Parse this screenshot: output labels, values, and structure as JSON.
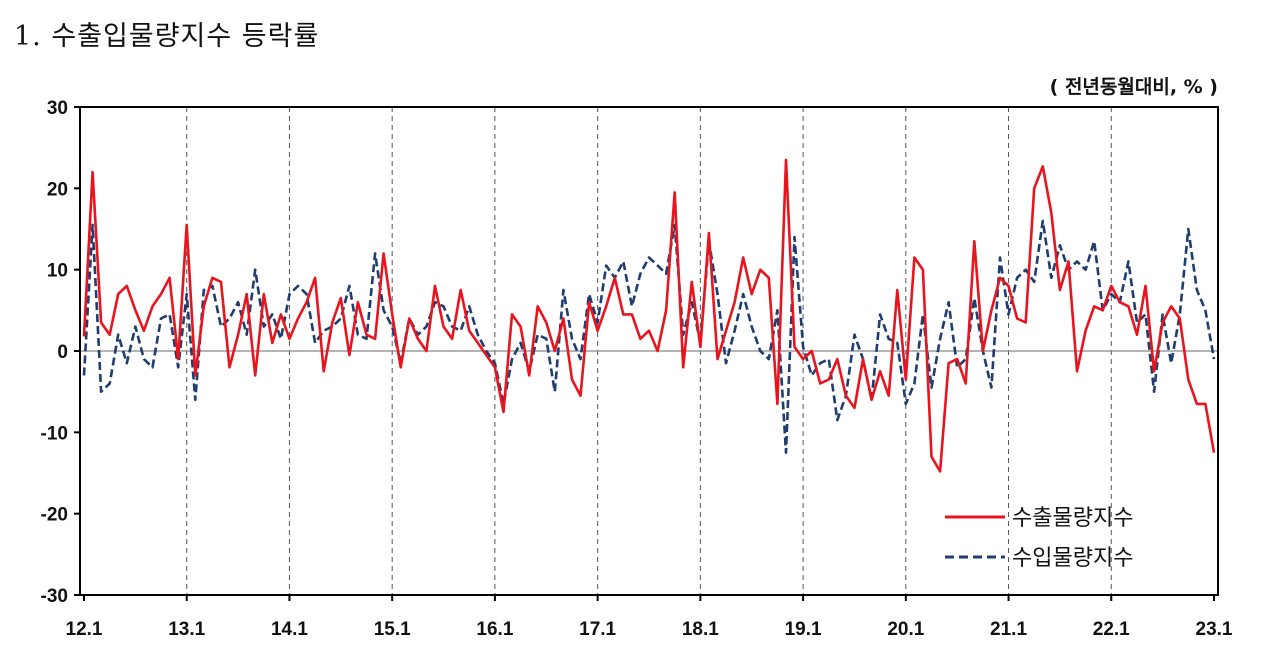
{
  "title": "1. 수출입물량지수 등락률",
  "unit_label": "( 전년동월대비, % )",
  "chart_data": {
    "type": "line",
    "ylim": [
      -30,
      30
    ],
    "yticks": [
      30,
      20,
      10,
      0,
      -10,
      -20,
      -30
    ],
    "xticks": [
      "12.1",
      "13.1",
      "14.1",
      "15.1",
      "16.1",
      "17.1",
      "18.1",
      "19.1",
      "20.1",
      "21.1",
      "22.1",
      "23.1"
    ],
    "x_range": [
      "2012-01",
      "2023-01"
    ],
    "grid": "vertical dashed at each January",
    "legend_position": "bottom-right",
    "series": [
      {
        "name": "수출물량지수",
        "color": "#e8141e",
        "style": "solid",
        "values": [
          1.8,
          22.0,
          3.5,
          2.0,
          7.0,
          8.0,
          5.0,
          2.5,
          5.5,
          7.0,
          9.0,
          -1.0,
          15.5,
          -3.0,
          5.5,
          9.0,
          8.5,
          -2.0,
          2.0,
          7.0,
          -3.0,
          7.0,
          1.0,
          4.5,
          1.5,
          4.0,
          6.0,
          9.0,
          -2.5,
          3.5,
          6.5,
          -0.5,
          6.0,
          2.0,
          1.5,
          12.0,
          4.5,
          -2.0,
          4.0,
          1.5,
          0.0,
          8.0,
          3.0,
          1.5,
          7.5,
          2.5,
          1.0,
          -0.5,
          -2.0,
          -7.5,
          4.5,
          3.0,
          -3.0,
          5.5,
          3.5,
          0.0,
          4.0,
          -3.5,
          -5.5,
          6.0,
          2.5,
          5.5,
          9.0,
          4.5,
          4.5,
          1.5,
          2.5,
          0.0,
          5.0,
          19.5,
          -2.0,
          8.5,
          0.5,
          14.5,
          -1.0,
          2.5,
          6.0,
          11.5,
          7.0,
          10.0,
          9.0,
          -6.5,
          23.5,
          0.5,
          -1.0,
          0.0,
          -4.0,
          -3.5,
          -1.0,
          -5.5,
          -7.0,
          -1.0,
          -6.0,
          -2.5,
          -5.5,
          7.5,
          -3.5,
          11.5,
          10.0,
          -13.0,
          -14.8,
          -1.5,
          -1.0,
          -4.0,
          13.5,
          0.0,
          5.0,
          9.0,
          8.0,
          4.0,
          3.5,
          20.0,
          22.7,
          17.0,
          7.5,
          11.0,
          -2.5,
          2.5,
          5.5,
          5.0,
          8.0,
          6.0,
          5.5,
          2.0,
          8.0,
          -2.5,
          3.5,
          5.5,
          4.0,
          -3.5,
          -6.5,
          -6.5,
          -12.5
        ]
      },
      {
        "name": "수입물량지수",
        "color": "#1f3d6e",
        "style": "dashed",
        "values": [
          -3.0,
          15.5,
          -5.0,
          -4.0,
          2.0,
          -1.5,
          3.0,
          -1.0,
          -2.0,
          4.0,
          4.5,
          -2.0,
          7.0,
          -6.0,
          7.5,
          8.0,
          3.0,
          4.0,
          6.0,
          2.0,
          10.0,
          3.0,
          4.5,
          1.5,
          7.0,
          8.0,
          7.0,
          1.0,
          2.5,
          3.0,
          4.0,
          8.0,
          2.0,
          1.5,
          12.0,
          5.0,
          3.0,
          -1.5,
          4.0,
          2.0,
          3.0,
          6.0,
          5.5,
          3.0,
          2.5,
          5.5,
          2.0,
          0.0,
          -1.5,
          -6.5,
          -1.0,
          1.0,
          -2.5,
          2.0,
          1.5,
          -5.0,
          7.5,
          1.5,
          -1.0,
          7.0,
          3.5,
          10.5,
          9.0,
          11.0,
          5.5,
          9.5,
          11.5,
          10.5,
          9.5,
          15.5,
          2.0,
          6.0,
          1.0,
          13.5,
          7.0,
          -1.5,
          2.5,
          7.0,
          3.0,
          0.0,
          -1.0,
          5.0,
          -12.5,
          14.0,
          0.5,
          -3.0,
          -1.5,
          -1.0,
          -8.5,
          -5.5,
          2.0,
          -1.0,
          -6.0,
          4.5,
          1.5,
          1.0,
          -6.5,
          -4.0,
          4.5,
          -4.5,
          1.5,
          6.0,
          -2.0,
          -1.0,
          6.5,
          0.0,
          -4.5,
          11.5,
          4.5,
          9.0,
          10.0,
          8.5,
          16.0,
          9.0,
          13.0,
          10.0,
          11.0,
          10.0,
          13.5,
          5.0,
          7.0,
          6.0,
          11.0,
          3.5,
          4.5,
          -5.0,
          4.5,
          -1.5,
          4.5,
          15.0,
          7.5,
          5.0,
          -1.0
        ]
      }
    ]
  },
  "colors": {
    "export_line": "#e8141e",
    "import_line": "#1f3d6e",
    "axis": "#000000",
    "grid": "#555555"
  }
}
